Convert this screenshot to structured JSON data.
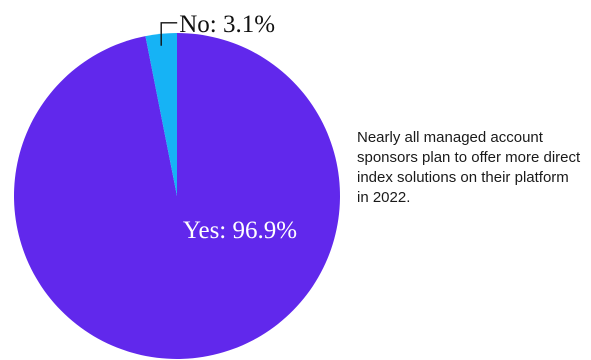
{
  "chart_data": {
    "type": "pie",
    "slices": [
      {
        "label": "Yes",
        "value": 96.9,
        "display": "Yes: 96.9%",
        "color": "#6128EC"
      },
      {
        "label": "No",
        "value": 3.1,
        "display": "No: 3.1%",
        "color": "#16B3F5"
      }
    ],
    "annotation": "Nearly all managed account sponsors plan to offer more direct index solutions on their platform in 2022."
  }
}
